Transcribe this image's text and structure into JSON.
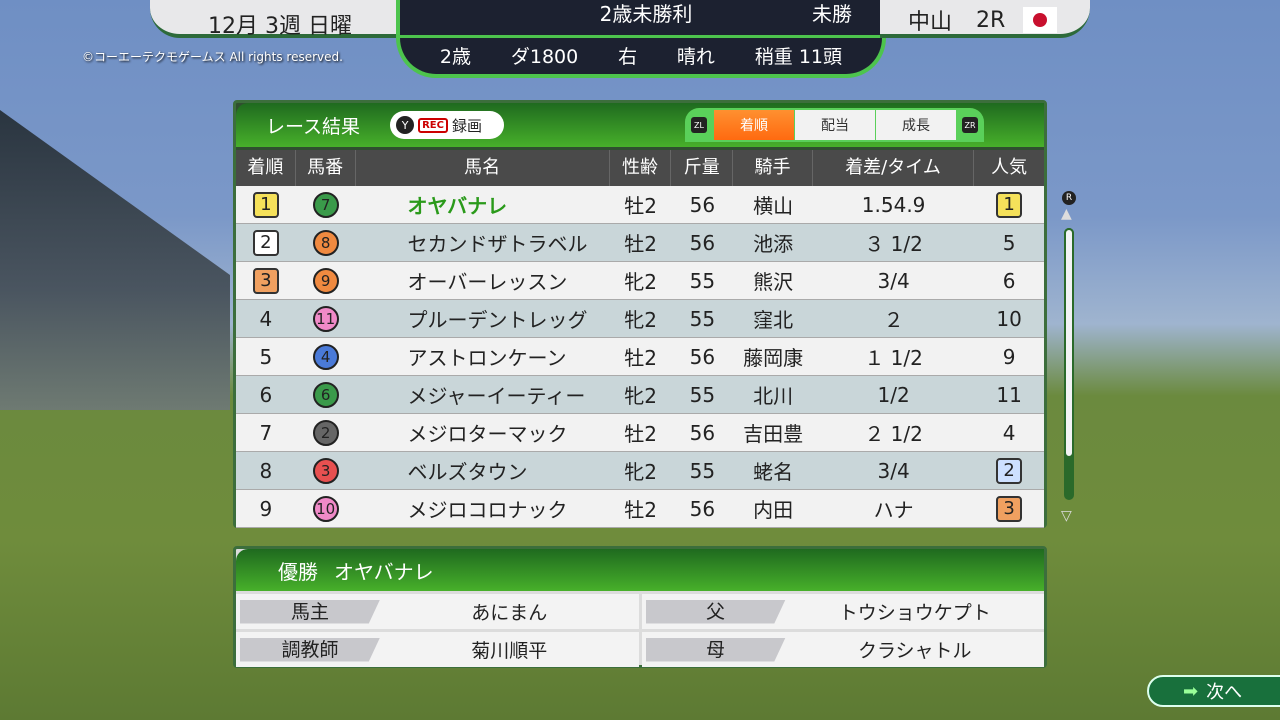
{
  "copyright": "©コーエーテクモゲームス All rights reserved.",
  "header": {
    "date": "12月 3週 日曜",
    "race_name": "2歳未勝利",
    "race_class": "未勝",
    "age": "2歳",
    "course": "ダ1800",
    "direction": "右",
    "weather": "晴れ",
    "track_condition": "稍重",
    "field_size": "11頭",
    "venue": "中山",
    "race_number": "2R",
    "flag": "japan-flag"
  },
  "results": {
    "title": "レース結果",
    "y_button": "Y",
    "rec": "REC",
    "record_label": "録画",
    "zl": "ZL",
    "zr": "ZR",
    "tabs": [
      {
        "label": "着順",
        "active": true
      },
      {
        "label": "配当",
        "active": false
      },
      {
        "label": "成長",
        "active": false
      }
    ],
    "columns": [
      "着順",
      "馬番",
      "馬名",
      "性齢",
      "斤量",
      "騎手",
      "着差/タイム",
      "人気"
    ],
    "rows": [
      {
        "rank": "1",
        "num": "7",
        "num_color": "#3a9a4a",
        "name": "オヤバナレ",
        "sexage": "牡2",
        "weight": "56",
        "jockey": "横山",
        "margin": "1.54.9",
        "pop": "1",
        "rank_color": "#f5e15a",
        "pop_color": "#f5e15a"
      },
      {
        "rank": "2",
        "num": "8",
        "num_color": "#f08a40",
        "name": "セカンドザトラベル",
        "sexage": "牡2",
        "weight": "56",
        "jockey": "池添",
        "margin": "３ 1/2",
        "pop": "5",
        "rank_color": "#ffffff"
      },
      {
        "rank": "3",
        "num": "9",
        "num_color": "#f08a40",
        "name": "オーバーレッスン",
        "sexage": "牝2",
        "weight": "55",
        "jockey": "熊沢",
        "margin": "3/4",
        "pop": "6",
        "rank_color": "#f0a060"
      },
      {
        "rank": "4",
        "num": "11",
        "num_color": "#f08ac8",
        "name": "プルーデントレッグ",
        "sexage": "牝2",
        "weight": "55",
        "jockey": "窪北",
        "margin": "２",
        "pop": "10"
      },
      {
        "rank": "5",
        "num": "4",
        "num_color": "#4a7ad8",
        "name": "アストロンケーン",
        "sexage": "牡2",
        "weight": "56",
        "jockey": "藤岡康",
        "margin": "１ 1/2",
        "pop": "9"
      },
      {
        "rank": "6",
        "num": "6",
        "num_color": "#3a9a4a",
        "name": "メジャーイーティー",
        "sexage": "牝2",
        "weight": "55",
        "jockey": "北川",
        "margin": "1/2",
        "pop": "11"
      },
      {
        "rank": "7",
        "num": "2",
        "num_color": "#666666",
        "name": "メジロターマック",
        "sexage": "牡2",
        "weight": "56",
        "jockey": "吉田豊",
        "margin": "２ 1/2",
        "pop": "4"
      },
      {
        "rank": "8",
        "num": "3",
        "num_color": "#e85050",
        "name": "ベルズタウン",
        "sexage": "牝2",
        "weight": "55",
        "jockey": "蛯名",
        "margin": "3/4",
        "pop": "2",
        "pop_color": "#cde0ff"
      },
      {
        "rank": "9",
        "num": "10",
        "num_color": "#f08ac8",
        "name": "メジロコロナック",
        "sexage": "牡2",
        "weight": "56",
        "jockey": "内田",
        "margin": "ハナ",
        "pop": "3",
        "pop_color": "#f0a060"
      }
    ]
  },
  "winner": {
    "label": "優勝",
    "name": "オヤバナレ",
    "owner_label": "馬主",
    "owner": "あにまん",
    "sire_label": "父",
    "sire": "トウショウケプト",
    "trainer_label": "調教師",
    "trainer": "菊川順平",
    "dam_label": "母",
    "dam": "クラシャトル"
  },
  "scrollbar": {
    "button": "R",
    "position": 0
  },
  "next_label": "次へ"
}
